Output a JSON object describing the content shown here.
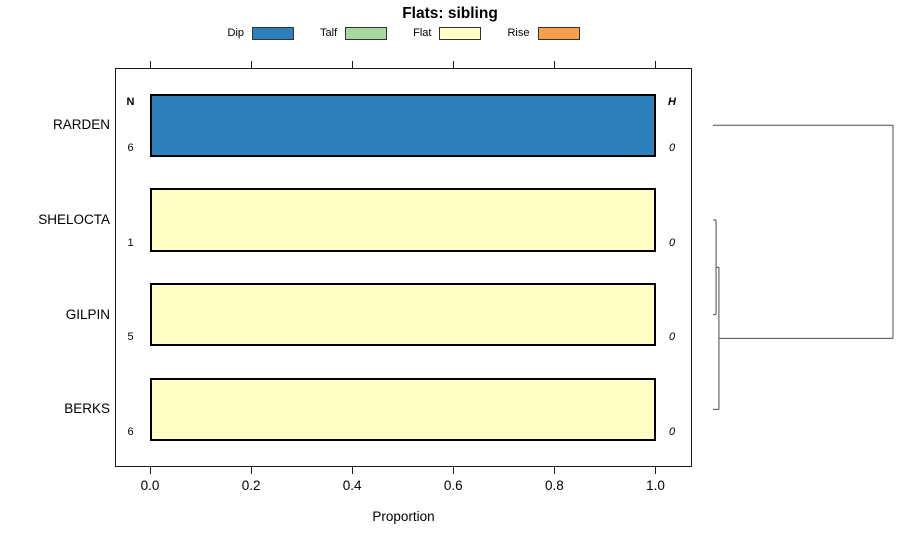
{
  "title": "Flats: sibling",
  "legend": {
    "items": [
      {
        "label": "Dip",
        "color": "#2E80BD"
      },
      {
        "label": "Talf",
        "color": "#A6D8A0"
      },
      {
        "label": "Flat",
        "color": "#FFFFC5"
      },
      {
        "label": "Rise",
        "color": "#F99E4C"
      }
    ]
  },
  "table_headers": {
    "n": "N",
    "h": "H"
  },
  "x_axis": {
    "label": "Proportion",
    "ticks": [
      {
        "label": "0.0",
        "value": 0.0
      },
      {
        "label": "0.2",
        "value": 0.2
      },
      {
        "label": "0.4",
        "value": 0.4
      },
      {
        "label": "0.6",
        "value": 0.6
      },
      {
        "label": "0.8",
        "value": 0.8
      },
      {
        "label": "1.0",
        "value": 1.0
      }
    ]
  },
  "chart_data": {
    "type": "bar",
    "orientation": "horizontal",
    "stacked": true,
    "title": "Flats: sibling",
    "xlabel": "Proportion",
    "xlim": [
      0,
      1
    ],
    "x_ticks": [
      0,
      0.2,
      0.4,
      0.6,
      0.8,
      1.0
    ],
    "legend_position": "top",
    "legend_categories": [
      "Dip",
      "Talf",
      "Flat",
      "Rise"
    ],
    "categories": [
      "RARDEN",
      "SHELOCTA",
      "GILPIN",
      "BERKS"
    ],
    "series": [
      {
        "name": "Dip",
        "values": [
          1.0,
          0,
          0,
          0
        ]
      },
      {
        "name": "Talf",
        "values": [
          0,
          0,
          0,
          0
        ]
      },
      {
        "name": "Flat",
        "values": [
          0,
          1.0,
          1.0,
          1.0
        ]
      },
      {
        "name": "Rise",
        "values": [
          0,
          0,
          0,
          0
        ]
      }
    ],
    "rows": [
      {
        "label": "RARDEN",
        "n": "6",
        "h": "0",
        "segments": [
          {
            "category": "Dip",
            "value": 1.0
          }
        ]
      },
      {
        "label": "SHELOCTA",
        "n": "1",
        "h": "0",
        "segments": [
          {
            "category": "Flat",
            "value": 1.0
          }
        ]
      },
      {
        "label": "GILPIN",
        "n": "5",
        "h": "0",
        "segments": [
          {
            "category": "Flat",
            "value": 1.0
          }
        ]
      },
      {
        "label": "BERKS",
        "n": "6",
        "h": "0",
        "segments": [
          {
            "category": "Flat",
            "value": 1.0
          }
        ]
      }
    ],
    "dendrogram": {
      "orientation": "right-of-plot, root at right",
      "merges": [
        {
          "children": [
            "SHELOCTA",
            "GILPIN"
          ],
          "height": 0.017
        },
        {
          "children": [
            "merge-0",
            "BERKS"
          ],
          "height": 0.033
        },
        {
          "children": [
            "merge-1",
            "RARDEN"
          ],
          "height": 1.0
        }
      ]
    }
  }
}
